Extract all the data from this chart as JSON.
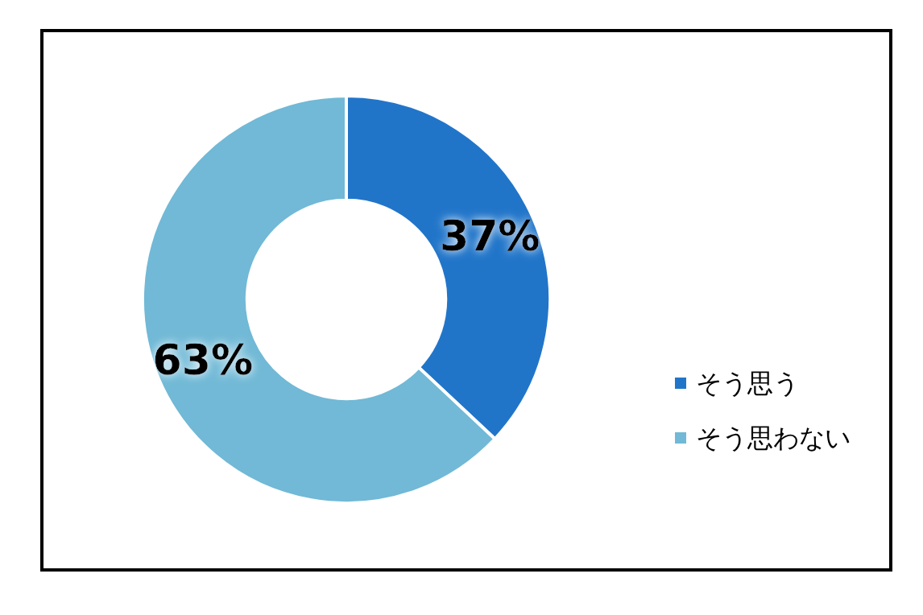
{
  "chart_data": {
    "type": "donut",
    "categories": [
      "そう思う",
      "そう思わない"
    ],
    "values": [
      37,
      63
    ],
    "colors": [
      "#2175c9",
      "#71b9d6"
    ],
    "value_labels": [
      "37%",
      "63%"
    ],
    "legend": "right"
  }
}
